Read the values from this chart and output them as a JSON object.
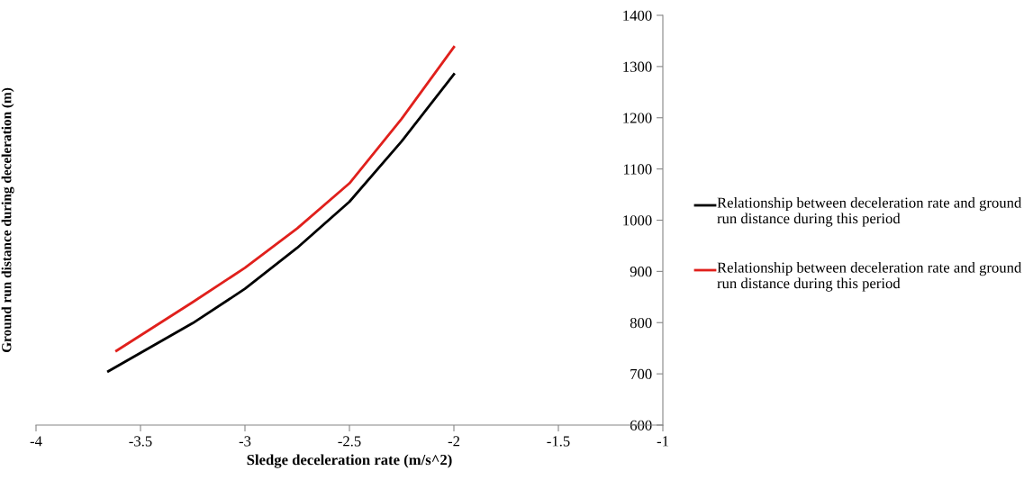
{
  "chart_data": {
    "type": "line",
    "xlabel": "Sledge deceleration rate (m/s^2)",
    "ylabel": "Ground run distance during deceleration (m)",
    "xlim": [
      -4,
      -1
    ],
    "xticks": [
      -4,
      -3.5,
      -3,
      -2.5,
      -2,
      -1.5,
      -1
    ],
    "ylim": [
      600,
      1400
    ],
    "yticks": [
      600,
      700,
      800,
      900,
      1000,
      1100,
      1200,
      1300,
      1400
    ],
    "grid": false,
    "legend": "right",
    "marker": "none",
    "line_style": "solid",
    "series": [
      {
        "name": "Relationship between deceleration rate and ground run distance during this period",
        "color": "#000000",
        "x": [
          -3.654,
          -3.25,
          -3,
          -2.75,
          -2.5,
          -2.25,
          -2
        ],
        "values": [
          705,
          799,
          866,
          946,
          1036,
          1154,
          1285
        ]
      },
      {
        "name": "Relationship between deceleration rate and ground run distance during this period",
        "color": "#e0201c",
        "x": [
          -3.615,
          -3.25,
          -3,
          -2.75,
          -2.5,
          -2.25,
          -2
        ],
        "values": [
          745,
          840,
          907,
          984,
          1072,
          1198,
          1338
        ]
      }
    ]
  }
}
